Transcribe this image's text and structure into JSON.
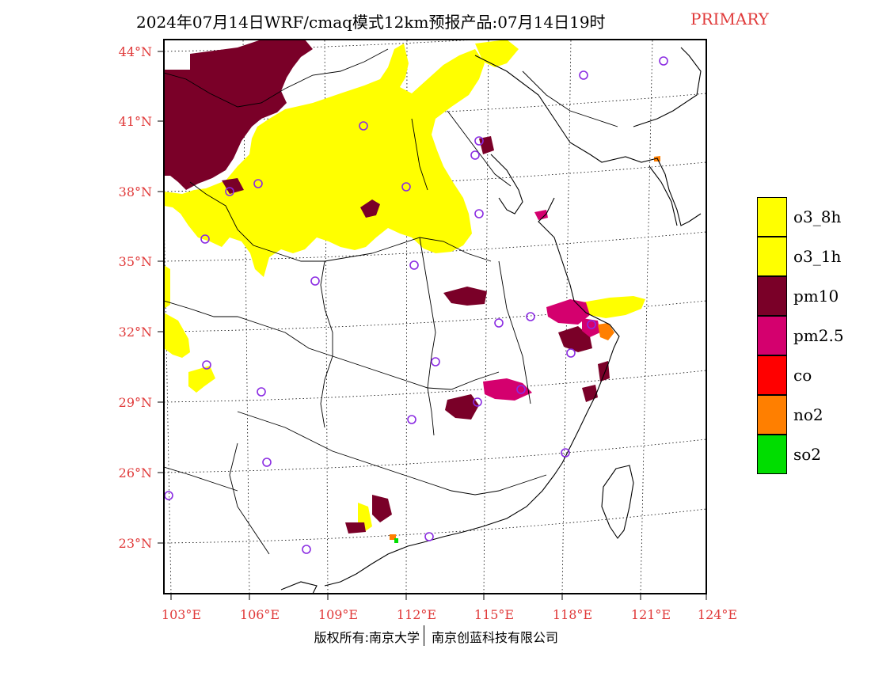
{
  "title": {
    "main": "2024年07月14日WRF/cmaq模式12km预报产品:07月14日19时",
    "tag": "PRIMARY"
  },
  "axes": {
    "lat_labels": [
      "44°N",
      "41°N",
      "38°N",
      "35°N",
      "32°N",
      "29°N",
      "26°N",
      "23°N"
    ],
    "lon_labels": [
      "103°E",
      "106°E",
      "109°E",
      "112°E",
      "115°E",
      "118°E",
      "121°E",
      "124°E"
    ]
  },
  "legend": {
    "items": [
      {
        "label": "o3_8h",
        "color": "#ffff00"
      },
      {
        "label": "o3_1h",
        "color": "#ffff00"
      },
      {
        "label": "pm10",
        "color": "#7a0028"
      },
      {
        "label": "pm2.5",
        "color": "#d4006e"
      },
      {
        "label": "co",
        "color": "#ff0000"
      },
      {
        "label": "no2",
        "color": "#ff7f00"
      },
      {
        "label": "so2",
        "color": "#00dd00"
      }
    ]
  },
  "colors": {
    "axis_label": "#e03a3a",
    "station_marker": "#8a2be2",
    "background": "#ffffff"
  },
  "copyright": {
    "left": "版权所有:南京大学",
    "right": "南京创蓝科技有限公司"
  }
}
